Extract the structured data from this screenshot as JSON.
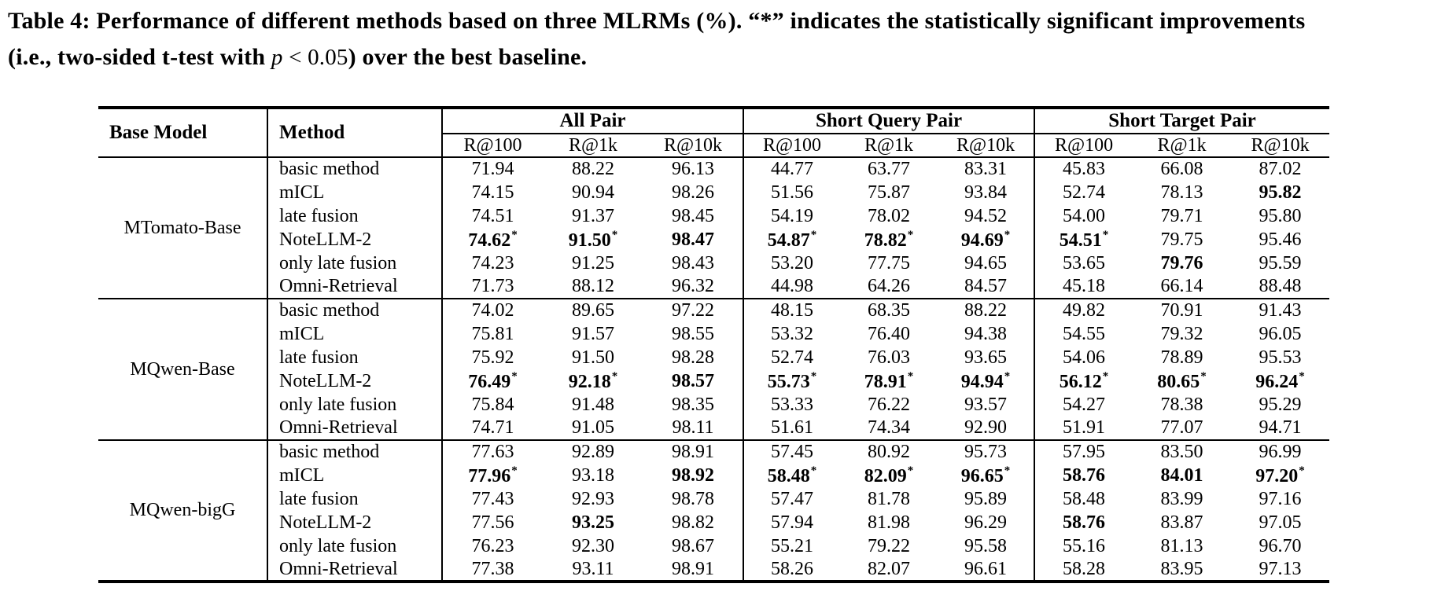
{
  "caption": {
    "lines": [
      [
        {
          "text": "Table 4: Performance of different methods based on three MLRMs (%). “*” indicates the statistically significant improvements",
          "style": "bold"
        }
      ],
      [
        {
          "text": "(i.e., two-sided t-test with ",
          "style": "bold"
        },
        {
          "text": "p",
          "style": "math-italic"
        },
        {
          "text": " < 0.05",
          "style": "math"
        },
        {
          "text": ") over the best baseline.",
          "style": "bold"
        }
      ]
    ]
  },
  "table": {
    "header": {
      "base_model": "Base Model",
      "method": "Method",
      "groups": [
        {
          "label": "All Pair",
          "metrics": [
            "R@100",
            "R@1k",
            "R@10k"
          ]
        },
        {
          "label": "Short Query Pair",
          "metrics": [
            "R@100",
            "R@1k",
            "R@10k"
          ]
        },
        {
          "label": "Short Target Pair",
          "metrics": [
            "R@100",
            "R@1k",
            "R@10k"
          ]
        }
      ]
    },
    "blocks": [
      {
        "base_model": "MTomato-Base",
        "rows": [
          {
            "method": "basic method",
            "values": [
              {
                "v": "71.94"
              },
              {
                "v": "88.22"
              },
              {
                "v": "96.13"
              },
              {
                "v": "44.77"
              },
              {
                "v": "63.77"
              },
              {
                "v": "83.31"
              },
              {
                "v": "45.83"
              },
              {
                "v": "66.08"
              },
              {
                "v": "87.02"
              }
            ]
          },
          {
            "method": "mICL",
            "values": [
              {
                "v": "74.15"
              },
              {
                "v": "90.94"
              },
              {
                "v": "98.26"
              },
              {
                "v": "51.56"
              },
              {
                "v": "75.87"
              },
              {
                "v": "93.84"
              },
              {
                "v": "52.74"
              },
              {
                "v": "78.13"
              },
              {
                "v": "95.82",
                "b": true
              }
            ]
          },
          {
            "method": "late fusion",
            "values": [
              {
                "v": "74.51"
              },
              {
                "v": "91.37"
              },
              {
                "v": "98.45"
              },
              {
                "v": "54.19"
              },
              {
                "v": "78.02"
              },
              {
                "v": "94.52"
              },
              {
                "v": "54.00"
              },
              {
                "v": "79.71"
              },
              {
                "v": "95.80"
              }
            ]
          },
          {
            "method": "NoteLLM-2",
            "values": [
              {
                "v": "74.62",
                "b": true,
                "s": true
              },
              {
                "v": "91.50",
                "b": true,
                "s": true
              },
              {
                "v": "98.47",
                "b": true
              },
              {
                "v": "54.87",
                "b": true,
                "s": true
              },
              {
                "v": "78.82",
                "b": true,
                "s": true
              },
              {
                "v": "94.69",
                "b": true,
                "s": true
              },
              {
                "v": "54.51",
                "b": true,
                "s": true
              },
              {
                "v": "79.75"
              },
              {
                "v": "95.46"
              }
            ]
          },
          {
            "method": "only late fusion",
            "values": [
              {
                "v": "74.23"
              },
              {
                "v": "91.25"
              },
              {
                "v": "98.43"
              },
              {
                "v": "53.20"
              },
              {
                "v": "77.75"
              },
              {
                "v": "94.65"
              },
              {
                "v": "53.65"
              },
              {
                "v": "79.76",
                "b": true
              },
              {
                "v": "95.59"
              }
            ]
          },
          {
            "method": "Omni-Retrieval",
            "values": [
              {
                "v": "71.73"
              },
              {
                "v": "88.12"
              },
              {
                "v": "96.32"
              },
              {
                "v": "44.98"
              },
              {
                "v": "64.26"
              },
              {
                "v": "84.57"
              },
              {
                "v": "45.18"
              },
              {
                "v": "66.14"
              },
              {
                "v": "88.48"
              }
            ]
          }
        ]
      },
      {
        "base_model": "MQwen-Base",
        "rows": [
          {
            "method": "basic method",
            "values": [
              {
                "v": "74.02"
              },
              {
                "v": "89.65"
              },
              {
                "v": "97.22"
              },
              {
                "v": "48.15"
              },
              {
                "v": "68.35"
              },
              {
                "v": "88.22"
              },
              {
                "v": "49.82"
              },
              {
                "v": "70.91"
              },
              {
                "v": "91.43"
              }
            ]
          },
          {
            "method": "mICL",
            "values": [
              {
                "v": "75.81"
              },
              {
                "v": "91.57"
              },
              {
                "v": "98.55"
              },
              {
                "v": "53.32"
              },
              {
                "v": "76.40"
              },
              {
                "v": "94.38"
              },
              {
                "v": "54.55"
              },
              {
                "v": "79.32"
              },
              {
                "v": "96.05"
              }
            ]
          },
          {
            "method": "late fusion",
            "values": [
              {
                "v": "75.92"
              },
              {
                "v": "91.50"
              },
              {
                "v": "98.28"
              },
              {
                "v": "52.74"
              },
              {
                "v": "76.03"
              },
              {
                "v": "93.65"
              },
              {
                "v": "54.06"
              },
              {
                "v": "78.89"
              },
              {
                "v": "95.53"
              }
            ]
          },
          {
            "method": "NoteLLM-2",
            "values": [
              {
                "v": "76.49",
                "b": true,
                "s": true
              },
              {
                "v": "92.18",
                "b": true,
                "s": true
              },
              {
                "v": "98.57",
                "b": true
              },
              {
                "v": "55.73",
                "b": true,
                "s": true
              },
              {
                "v": "78.91",
                "b": true,
                "s": true
              },
              {
                "v": "94.94",
                "b": true,
                "s": true
              },
              {
                "v": "56.12",
                "b": true,
                "s": true
              },
              {
                "v": "80.65",
                "b": true,
                "s": true
              },
              {
                "v": "96.24",
                "b": true,
                "s": true
              }
            ]
          },
          {
            "method": "only late fusion",
            "values": [
              {
                "v": "75.84"
              },
              {
                "v": "91.48"
              },
              {
                "v": "98.35"
              },
              {
                "v": "53.33"
              },
              {
                "v": "76.22"
              },
              {
                "v": "93.57"
              },
              {
                "v": "54.27"
              },
              {
                "v": "78.38"
              },
              {
                "v": "95.29"
              }
            ]
          },
          {
            "method": "Omni-Retrieval",
            "values": [
              {
                "v": "74.71"
              },
              {
                "v": "91.05"
              },
              {
                "v": "98.11"
              },
              {
                "v": "51.61"
              },
              {
                "v": "74.34"
              },
              {
                "v": "92.90"
              },
              {
                "v": "51.91"
              },
              {
                "v": "77.07"
              },
              {
                "v": "94.71"
              }
            ]
          }
        ]
      },
      {
        "base_model": "MQwen-bigG",
        "rows": [
          {
            "method": "basic method",
            "values": [
              {
                "v": "77.63"
              },
              {
                "v": "92.89"
              },
              {
                "v": "98.91"
              },
              {
                "v": "57.45"
              },
              {
                "v": "80.92"
              },
              {
                "v": "95.73"
              },
              {
                "v": "57.95"
              },
              {
                "v": "83.50"
              },
              {
                "v": "96.99"
              }
            ]
          },
          {
            "method": "mICL",
            "values": [
              {
                "v": "77.96",
                "b": true,
                "s": true
              },
              {
                "v": "93.18"
              },
              {
                "v": "98.92",
                "b": true
              },
              {
                "v": "58.48",
                "b": true,
                "s": true
              },
              {
                "v": "82.09",
                "b": true,
                "s": true
              },
              {
                "v": "96.65",
                "b": true,
                "s": true
              },
              {
                "v": "58.76",
                "b": true
              },
              {
                "v": "84.01",
                "b": true
              },
              {
                "v": "97.20",
                "b": true,
                "s": true
              }
            ]
          },
          {
            "method": "late fusion",
            "values": [
              {
                "v": "77.43"
              },
              {
                "v": "92.93"
              },
              {
                "v": "98.78"
              },
              {
                "v": "57.47"
              },
              {
                "v": "81.78"
              },
              {
                "v": "95.89"
              },
              {
                "v": "58.48"
              },
              {
                "v": "83.99"
              },
              {
                "v": "97.16"
              }
            ]
          },
          {
            "method": "NoteLLM-2",
            "values": [
              {
                "v": "77.56"
              },
              {
                "v": "93.25",
                "b": true
              },
              {
                "v": "98.82"
              },
              {
                "v": "57.94"
              },
              {
                "v": "81.98"
              },
              {
                "v": "96.29"
              },
              {
                "v": "58.76",
                "b": true
              },
              {
                "v": "83.87"
              },
              {
                "v": "97.05"
              }
            ]
          },
          {
            "method": "only late fusion",
            "values": [
              {
                "v": "76.23"
              },
              {
                "v": "92.30"
              },
              {
                "v": "98.67"
              },
              {
                "v": "55.21"
              },
              {
                "v": "79.22"
              },
              {
                "v": "95.58"
              },
              {
                "v": "55.16"
              },
              {
                "v": "81.13"
              },
              {
                "v": "96.70"
              }
            ]
          },
          {
            "method": "Omni-Retrieval",
            "values": [
              {
                "v": "77.38"
              },
              {
                "v": "93.11"
              },
              {
                "v": "98.91"
              },
              {
                "v": "58.26"
              },
              {
                "v": "82.07"
              },
              {
                "v": "96.61"
              },
              {
                "v": "58.28"
              },
              {
                "v": "83.95"
              },
              {
                "v": "97.13"
              }
            ]
          }
        ]
      }
    ]
  }
}
